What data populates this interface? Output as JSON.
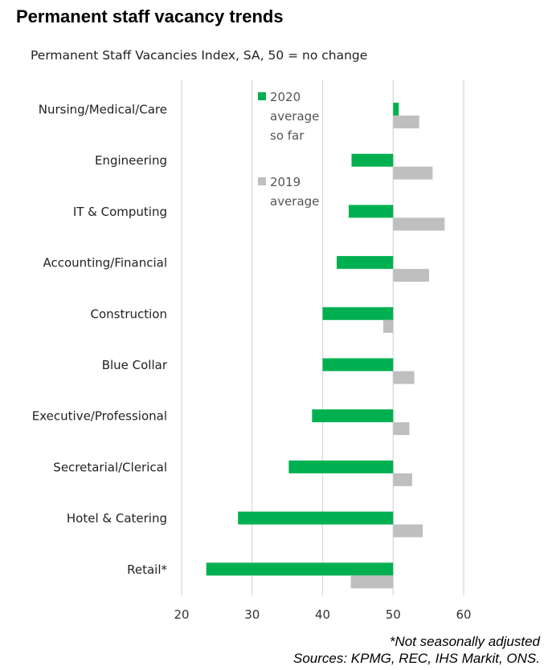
{
  "title": "Permanent staff vacancy trends",
  "subtitle": "Permanent Staff Vacancies Index, SA, 50 = no change",
  "footnotes": [
    "*Not seasonally adjusted",
    "Sources: KPMG, REC, IHS Markit, ONS."
  ],
  "colors": {
    "series_2020": "#00b050",
    "series_2019": "#bfbfbf",
    "grid": "#d9d9d9"
  },
  "chart_data": {
    "type": "bar",
    "orientation": "horizontal",
    "categories": [
      "Nursing/Medical/Care",
      "Engineering",
      "IT & Computing",
      "Accounting/Financial",
      "Construction",
      "Blue Collar",
      "Executive/Professional",
      "Secretarial/Clerical",
      "Hotel & Catering",
      "Retail*"
    ],
    "series": [
      {
        "name": "2020 average so far",
        "legend_lines": [
          "2020",
          "average",
          "so far"
        ],
        "values": [
          50.8,
          44.1,
          43.7,
          42.0,
          40.0,
          40.0,
          38.5,
          35.2,
          28.0,
          23.5
        ]
      },
      {
        "name": "2019 average",
        "legend_lines": [
          "2019",
          "average"
        ],
        "values": [
          53.7,
          55.6,
          57.3,
          55.1,
          48.6,
          53.0,
          52.3,
          52.7,
          54.2,
          44.0
        ]
      }
    ],
    "xlim": [
      20,
      60
    ],
    "xticks": [
      "20",
      "30",
      "40",
      "50",
      "60"
    ],
    "baseline": 50,
    "grid": true,
    "legend_position": "top-center-inside"
  }
}
